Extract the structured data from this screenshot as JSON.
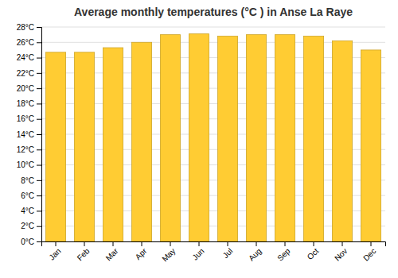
{
  "chart_data": {
    "type": "bar",
    "title": "Average monthly temperatures (°C ) in Anse La Raye",
    "categories": [
      "Jan",
      "Feb",
      "Mar",
      "Apr",
      "May",
      "Jun",
      "Jul",
      "Aug",
      "Sep",
      "Oct",
      "Nov",
      "Dec"
    ],
    "values": [
      24.7,
      24.7,
      25.3,
      26.0,
      27.0,
      27.1,
      26.8,
      27.0,
      27.0,
      26.8,
      26.2,
      25.0
    ],
    "color": "#FFCC33",
    "ylim": [
      0,
      28
    ],
    "yticks": [
      {
        "value": 0,
        "label": "0°C"
      },
      {
        "value": 2,
        "label": "2°C"
      },
      {
        "value": 4,
        "label": "4°C"
      },
      {
        "value": 6,
        "label": "6°C"
      },
      {
        "value": 8,
        "label": "8°C"
      },
      {
        "value": 10,
        "label": "10°C"
      },
      {
        "value": 12,
        "label": "12°C"
      },
      {
        "value": 14,
        "label": "14°C"
      },
      {
        "value": 16,
        "label": "16°C"
      },
      {
        "value": 18,
        "label": "18°C"
      },
      {
        "value": 20,
        "label": "20°C"
      },
      {
        "value": 22,
        "label": "22°C"
      },
      {
        "value": 24,
        "label": "24°C"
      },
      {
        "value": 26,
        "label": "26°C"
      },
      {
        "value": 28,
        "label": "28°C"
      }
    ],
    "grid": true
  }
}
